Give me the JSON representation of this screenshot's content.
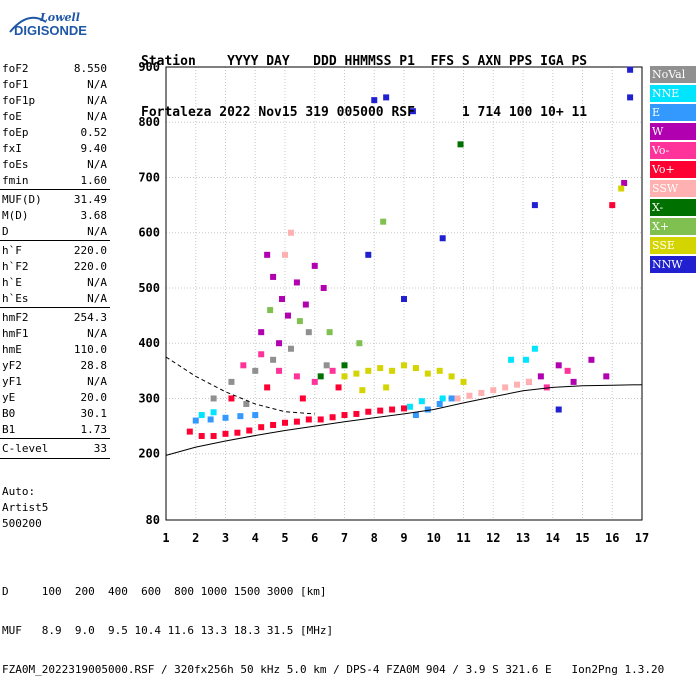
{
  "logo": {
    "line1": "Lowell",
    "line2": "DIGISONDE"
  },
  "header": {
    "line1": "Station    YYYY DAY   DDD HHMMSS P1  FFS S AXN PPS IGA PS",
    "line2": "Fortaleza 2022 Nov15 319 005000 RSF      1 714 100 10+ 11"
  },
  "params": [
    {
      "group": 1,
      "k": "foF2",
      "v": "8.550"
    },
    {
      "group": 1,
      "k": "foF1",
      "v": "N/A"
    },
    {
      "group": 1,
      "k": "foF1p",
      "v": "N/A"
    },
    {
      "group": 1,
      "k": "foE",
      "v": "N/A"
    },
    {
      "group": 1,
      "k": "foEp",
      "v": "0.52"
    },
    {
      "group": 1,
      "k": "fxI",
      "v": "9.40"
    },
    {
      "group": 1,
      "k": "foEs",
      "v": "N/A"
    },
    {
      "group": 1,
      "k": "fmin",
      "v": "1.60"
    },
    {
      "group": 2,
      "k": "MUF(D)",
      "v": "31.49"
    },
    {
      "group": 2,
      "k": "M(D)",
      "v": "3.68"
    },
    {
      "group": 2,
      "k": "D",
      "v": "N/A"
    },
    {
      "group": 3,
      "k": "h`F",
      "v": "220.0"
    },
    {
      "group": 3,
      "k": "h`F2",
      "v": "220.0"
    },
    {
      "group": 3,
      "k": "h`E",
      "v": "N/A"
    },
    {
      "group": 3,
      "k": "h`Es",
      "v": "N/A"
    },
    {
      "group": 4,
      "k": "hmF2",
      "v": "254.3"
    },
    {
      "group": 4,
      "k": "hmF1",
      "v": "N/A"
    },
    {
      "group": 4,
      "k": "hmE",
      "v": "110.0"
    },
    {
      "group": 4,
      "k": "yF2",
      "v": "28.8"
    },
    {
      "group": 4,
      "k": "yF1",
      "v": "N/A"
    },
    {
      "group": 4,
      "k": "yE",
      "v": "20.0"
    },
    {
      "group": 4,
      "k": "B0",
      "v": "30.1"
    },
    {
      "group": 4,
      "k": "B1",
      "v": "1.73"
    },
    {
      "group": 5,
      "k": "C-level",
      "v": "33"
    }
  ],
  "auto": {
    "l1": "Auto:",
    "l2": "Artist5",
    "l3": "500200"
  },
  "legend": [
    {
      "label": "NoVal",
      "color": "#909090"
    },
    {
      "label": "NNE",
      "color": "#00e5ff"
    },
    {
      "label": "E",
      "color": "#3399ff"
    },
    {
      "label": "W",
      "color": "#b000b0"
    },
    {
      "label": "Vo-",
      "color": "#ff3399"
    },
    {
      "label": "Vo+",
      "color": "#ff0033"
    },
    {
      "label": "SSW",
      "color": "#ffb0b0"
    },
    {
      "label": "X-",
      "color": "#007000"
    },
    {
      "label": "X+",
      "color": "#80c050"
    },
    {
      "label": "SSE",
      "color": "#d4d400"
    },
    {
      "label": "NNW",
      "color": "#2020d0"
    }
  ],
  "footer": {
    "line1": "D     100  200  400  600  800 1000 1500 3000 [km]",
    "line2": "MUF   8.9  9.0  9.5 10.4 11.6 13.3 18.3 31.5 [MHz]",
    "line3": "FZA0M_2022319005000.RSF / 320fx256h 50 kHz 5.0 km / DPS-4 FZA0M 904 / 3.9 S 321.6 E   Ion2Png 1.3.20"
  },
  "chart_data": {
    "type": "scatter",
    "xlim": [
      1,
      17
    ],
    "ylim": [
      80,
      900
    ],
    "x_ticks": [
      1,
      2,
      3,
      4,
      5,
      6,
      7,
      8,
      9,
      10,
      11,
      12,
      13,
      14,
      15,
      16,
      17
    ],
    "y_ticks": [
      80,
      200,
      300,
      400,
      500,
      600,
      700,
      800,
      900
    ],
    "grid": true,
    "scatter_clusters": [
      {
        "name": "NoVal",
        "color": "#909090",
        "points": [
          [
            2.6,
            300
          ],
          [
            3.2,
            330
          ],
          [
            4.0,
            350
          ],
          [
            4.6,
            370
          ],
          [
            5.2,
            390
          ],
          [
            5.8,
            420
          ],
          [
            6.4,
            360
          ],
          [
            3.7,
            290
          ]
        ]
      },
      {
        "name": "NNE",
        "color": "#00e5ff",
        "points": [
          [
            2.2,
            270
          ],
          [
            2.6,
            275
          ],
          [
            9.2,
            285
          ],
          [
            9.6,
            295
          ],
          [
            12.6,
            370
          ],
          [
            13.1,
            370
          ],
          [
            13.4,
            390
          ],
          [
            10.3,
            300
          ]
        ]
      },
      {
        "name": "E",
        "color": "#3399ff",
        "points": [
          [
            2.0,
            260
          ],
          [
            2.5,
            262
          ],
          [
            3.0,
            265
          ],
          [
            3.5,
            268
          ],
          [
            4.0,
            270
          ],
          [
            9.4,
            270
          ],
          [
            9.8,
            280
          ],
          [
            10.2,
            290
          ],
          [
            10.6,
            300
          ]
        ]
      },
      {
        "name": "W",
        "color": "#b000b0",
        "points": [
          [
            4.4,
            560
          ],
          [
            4.6,
            520
          ],
          [
            4.9,
            480
          ],
          [
            5.1,
            450
          ],
          [
            5.4,
            510
          ],
          [
            5.7,
            470
          ],
          [
            6.0,
            540
          ],
          [
            6.3,
            500
          ],
          [
            4.2,
            420
          ],
          [
            4.8,
            400
          ],
          [
            13.6,
            340
          ],
          [
            14.2,
            360
          ],
          [
            14.7,
            330
          ],
          [
            15.3,
            370
          ],
          [
            15.8,
            340
          ],
          [
            16.4,
            690
          ]
        ]
      },
      {
        "name": "Vo-",
        "color": "#ff3399",
        "points": [
          [
            3.6,
            360
          ],
          [
            4.2,
            380
          ],
          [
            4.8,
            350
          ],
          [
            5.4,
            340
          ],
          [
            6.0,
            330
          ],
          [
            6.6,
            350
          ],
          [
            13.2,
            330
          ],
          [
            13.8,
            320
          ],
          [
            14.5,
            350
          ]
        ]
      },
      {
        "name": "Vo+",
        "color": "#ff0033",
        "points": [
          [
            1.8,
            240
          ],
          [
            2.2,
            232
          ],
          [
            2.6,
            232
          ],
          [
            3.0,
            236
          ],
          [
            3.4,
            238
          ],
          [
            3.8,
            242
          ],
          [
            4.2,
            248
          ],
          [
            4.6,
            252
          ],
          [
            5.0,
            256
          ],
          [
            5.4,
            258
          ],
          [
            5.8,
            262
          ],
          [
            6.2,
            262
          ],
          [
            6.6,
            266
          ],
          [
            7.0,
            270
          ],
          [
            7.4,
            272
          ],
          [
            7.8,
            276
          ],
          [
            8.2,
            278
          ],
          [
            8.6,
            280
          ],
          [
            9.0,
            282
          ],
          [
            3.2,
            300
          ],
          [
            4.4,
            320
          ],
          [
            5.6,
            300
          ],
          [
            6.8,
            320
          ],
          [
            16.0,
            650
          ]
        ]
      },
      {
        "name": "SSW",
        "color": "#ffb0b0",
        "points": [
          [
            10.8,
            300
          ],
          [
            11.2,
            305
          ],
          [
            11.6,
            310
          ],
          [
            12.0,
            315
          ],
          [
            12.4,
            320
          ],
          [
            12.8,
            325
          ],
          [
            13.2,
            330
          ],
          [
            5.0,
            560
          ],
          [
            5.2,
            600
          ]
        ]
      },
      {
        "name": "X-",
        "color": "#007000",
        "points": [
          [
            6.2,
            340
          ],
          [
            7.0,
            360
          ],
          [
            10.9,
            760
          ]
        ]
      },
      {
        "name": "X+",
        "color": "#80c050",
        "points": [
          [
            4.5,
            460
          ],
          [
            5.5,
            440
          ],
          [
            6.5,
            420
          ],
          [
            7.5,
            400
          ],
          [
            8.3,
            620
          ]
        ]
      },
      {
        "name": "SSE",
        "color": "#d4d400",
        "points": [
          [
            7.0,
            340
          ],
          [
            7.4,
            345
          ],
          [
            7.8,
            350
          ],
          [
            8.2,
            355
          ],
          [
            8.6,
            350
          ],
          [
            9.0,
            360
          ],
          [
            9.4,
            355
          ],
          [
            9.8,
            345
          ],
          [
            10.2,
            350
          ],
          [
            10.6,
            340
          ],
          [
            11.0,
            330
          ],
          [
            7.6,
            315
          ],
          [
            8.4,
            320
          ],
          [
            16.3,
            680
          ]
        ]
      },
      {
        "name": "NNW",
        "color": "#2020d0",
        "points": [
          [
            8.0,
            840
          ],
          [
            8.4,
            845
          ],
          [
            9.3,
            820
          ],
          [
            9.0,
            480
          ],
          [
            10.3,
            590
          ],
          [
            13.4,
            650
          ],
          [
            14.2,
            280
          ],
          [
            16.6,
            895
          ],
          [
            16.6,
            845
          ],
          [
            7.8,
            560
          ]
        ]
      }
    ],
    "trace_curves": [
      {
        "style": "solid",
        "points": [
          [
            1,
            197
          ],
          [
            2,
            212
          ],
          [
            3,
            223
          ],
          [
            4,
            233
          ],
          [
            5,
            242
          ],
          [
            6,
            250
          ],
          [
            7,
            258
          ],
          [
            8,
            265
          ],
          [
            9,
            272
          ],
          [
            10,
            280
          ],
          [
            11,
            292
          ],
          [
            12,
            303
          ],
          [
            13,
            314
          ],
          [
            14,
            320
          ],
          [
            15,
            323
          ],
          [
            16,
            324
          ],
          [
            17,
            325
          ]
        ]
      },
      {
        "style": "dashed",
        "points": [
          [
            1,
            375
          ],
          [
            2,
            340
          ],
          [
            3,
            312
          ],
          [
            4,
            290
          ],
          [
            5,
            276
          ],
          [
            6,
            272
          ]
        ]
      }
    ]
  }
}
